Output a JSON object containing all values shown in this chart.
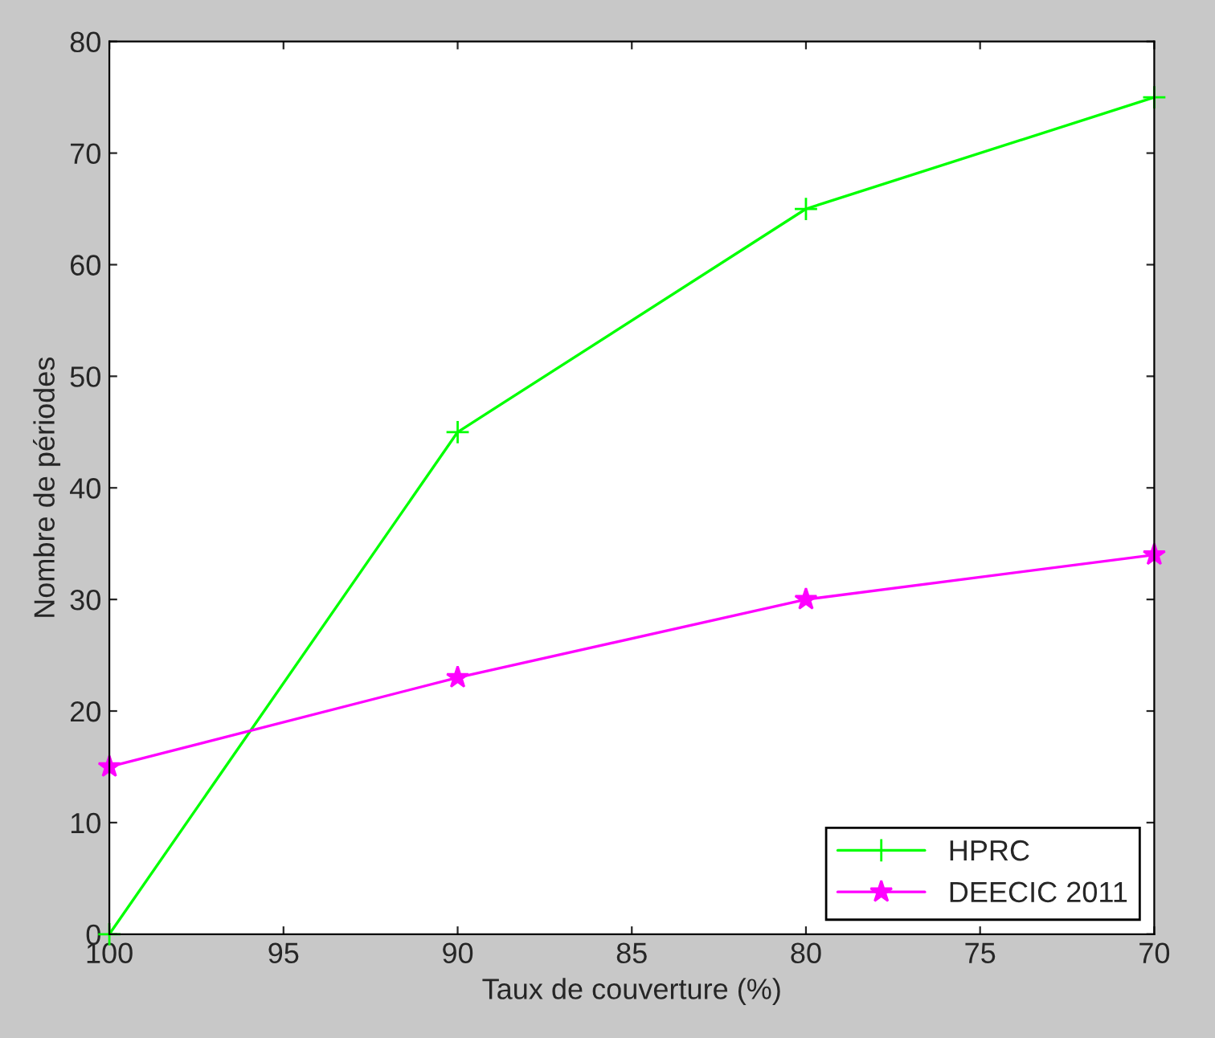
{
  "chart_data": {
    "type": "line",
    "xlabel": "Taux de couverture (%)",
    "ylabel": "Nombre de périodes",
    "x": [
      100,
      90,
      80,
      70
    ],
    "xlim": [
      100,
      70
    ],
    "xticks": [
      100,
      95,
      90,
      85,
      80,
      75,
      70
    ],
    "ylim": [
      0,
      80
    ],
    "yticks": [
      0,
      10,
      20,
      30,
      40,
      50,
      60,
      70,
      80
    ],
    "series": [
      {
        "name": "HPRC",
        "color": "#00ff00",
        "marker": "cross",
        "values": [
          0,
          45,
          65,
          75
        ]
      },
      {
        "name": "DEECIC 2011",
        "color": "#ff00ff",
        "marker": "star",
        "values": [
          15,
          23,
          30,
          34
        ]
      }
    ],
    "grid": false,
    "legend": "bottom right"
  }
}
